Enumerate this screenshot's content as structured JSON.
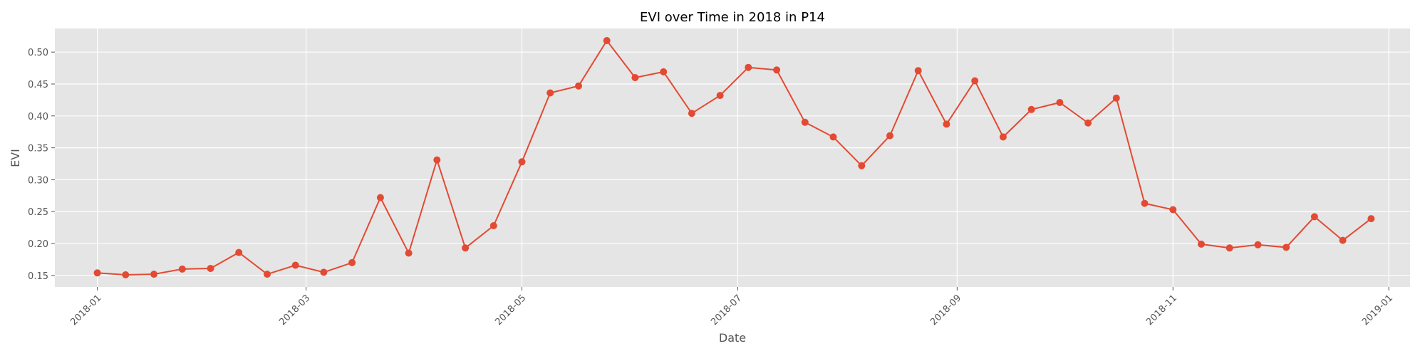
{
  "chart_data": {
    "type": "line",
    "title": "EVI over Time in 2018 in P14",
    "xlabel": "Date",
    "ylabel": "EVI",
    "xlim": [
      "2017-12-20",
      "2019-01-07"
    ],
    "ylim": [
      0.132,
      0.537
    ],
    "grid": true,
    "x_ticks": [
      "2018-01",
      "2018-03",
      "2018-05",
      "2018-07",
      "2018-09",
      "2018-11",
      "2019-01"
    ],
    "y_ticks": [
      "0.15",
      "0.20",
      "0.25",
      "0.30",
      "0.35",
      "0.40",
      "0.45",
      "0.50"
    ],
    "colors": {
      "line": "#E24A33",
      "plot_bg": "#E5E5E5",
      "grid": "#FFFFFF"
    },
    "series": [
      {
        "x": [
          "2018-01-01",
          "2018-01-09",
          "2018-01-17",
          "2018-01-25",
          "2018-02-02",
          "2018-02-10",
          "2018-02-18",
          "2018-02-26",
          "2018-03-06",
          "2018-03-14",
          "2018-03-22",
          "2018-03-30",
          "2018-04-07",
          "2018-04-15",
          "2018-04-23",
          "2018-05-01",
          "2018-05-09",
          "2018-05-17",
          "2018-05-25",
          "2018-06-02",
          "2018-06-10",
          "2018-06-18",
          "2018-06-26",
          "2018-07-04",
          "2018-07-12",
          "2018-07-20",
          "2018-07-28",
          "2018-08-05",
          "2018-08-13",
          "2018-08-21",
          "2018-08-29",
          "2018-09-06",
          "2018-09-14",
          "2018-09-22",
          "2018-09-30",
          "2018-10-08",
          "2018-10-16",
          "2018-10-24",
          "2018-11-01",
          "2018-11-09",
          "2018-11-17",
          "2018-11-25",
          "2018-12-03",
          "2018-12-11",
          "2018-12-19",
          "2018-12-27"
        ],
        "values": [
          0.154,
          0.151,
          0.152,
          0.16,
          0.161,
          0.186,
          0.152,
          0.166,
          0.155,
          0.17,
          0.272,
          0.185,
          0.331,
          0.193,
          0.228,
          0.328,
          0.436,
          0.447,
          0.518,
          0.46,
          0.469,
          0.404,
          0.432,
          0.476,
          0.472,
          0.39,
          0.367,
          0.322,
          0.369,
          0.471,
          0.387,
          0.455,
          0.367,
          0.41,
          0.421,
          0.389,
          0.428,
          0.263,
          0.253,
          0.199,
          0.193,
          0.198,
          0.194,
          0.242,
          0.205,
          0.239
        ]
      }
    ]
  }
}
